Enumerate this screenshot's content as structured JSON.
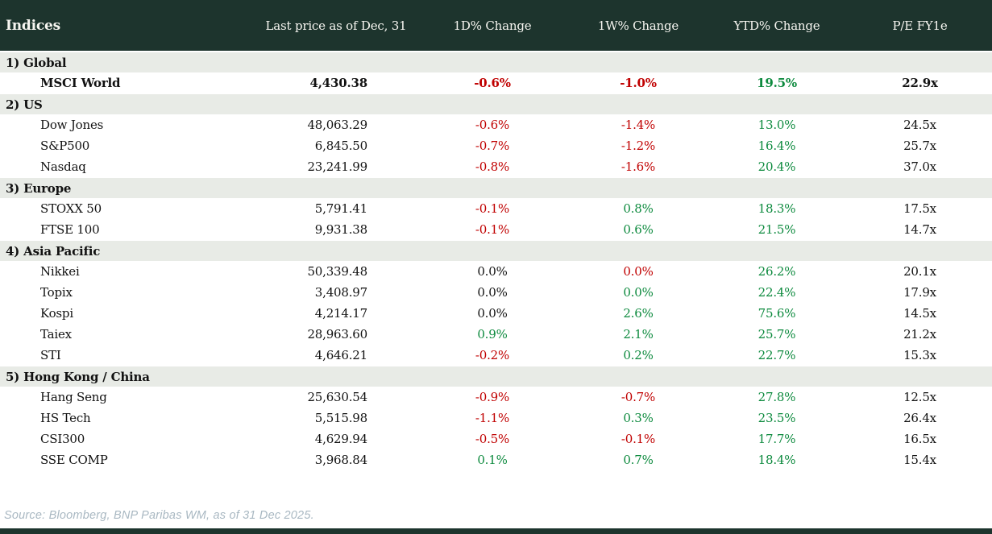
{
  "chart_data": {
    "type": "table",
    "title": "Indices",
    "columns": [
      "Indices",
      "Last price as of Dec, 31",
      "1D% Change",
      "1W% Change",
      "YTD% Change",
      "P/E FY1e"
    ],
    "sections": [
      {
        "label": "1) Global",
        "rows": [
          {
            "name": "MSCI World",
            "bold": true,
            "price": "4,430.38",
            "chg_1d": "-0.6%",
            "chg_1d_color": "neg",
            "chg_1w": "-1.0%",
            "chg_1w_color": "neg",
            "ytd": "19.5%",
            "ytd_color": "pos",
            "pe": "22.9x"
          }
        ]
      },
      {
        "label": "2) US",
        "rows": [
          {
            "name": "Dow Jones",
            "bold": false,
            "price": "48,063.29",
            "chg_1d": "-0.6%",
            "chg_1d_color": "neg",
            "chg_1w": "-1.4%",
            "chg_1w_color": "neg",
            "ytd": "13.0%",
            "ytd_color": "pos",
            "pe": "24.5x"
          },
          {
            "name": "S&P500",
            "bold": false,
            "price": "6,845.50",
            "chg_1d": "-0.7%",
            "chg_1d_color": "neg",
            "chg_1w": "-1.2%",
            "chg_1w_color": "neg",
            "ytd": "16.4%",
            "ytd_color": "pos",
            "pe": "25.7x"
          },
          {
            "name": "Nasdaq",
            "bold": false,
            "price": "23,241.99",
            "chg_1d": "-0.8%",
            "chg_1d_color": "neg",
            "chg_1w": "-1.6%",
            "chg_1w_color": "neg",
            "ytd": "20.4%",
            "ytd_color": "pos",
            "pe": "37.0x"
          }
        ]
      },
      {
        "label": "3) Europe",
        "rows": [
          {
            "name": "STOXX 50",
            "bold": false,
            "price": "5,791.41",
            "chg_1d": "-0.1%",
            "chg_1d_color": "neg",
            "chg_1w": "0.8%",
            "chg_1w_color": "pos",
            "ytd": "18.3%",
            "ytd_color": "pos",
            "pe": "17.5x"
          },
          {
            "name": "FTSE 100",
            "bold": false,
            "price": "9,931.38",
            "chg_1d": "-0.1%",
            "chg_1d_color": "neg",
            "chg_1w": "0.6%",
            "chg_1w_color": "pos",
            "ytd": "21.5%",
            "ytd_color": "pos",
            "pe": "14.7x"
          }
        ]
      },
      {
        "label": "4) Asia Pacific",
        "rows": [
          {
            "name": "Nikkei",
            "bold": false,
            "price": "50,339.48",
            "chg_1d": "0.0%",
            "chg_1d_color": "flat",
            "chg_1w": "0.0%",
            "chg_1w_color": "neg",
            "ytd": "26.2%",
            "ytd_color": "pos",
            "pe": "20.1x"
          },
          {
            "name": "Topix",
            "bold": false,
            "price": "3,408.97",
            "chg_1d": "0.0%",
            "chg_1d_color": "flat",
            "chg_1w": "0.0%",
            "chg_1w_color": "pos",
            "ytd": "22.4%",
            "ytd_color": "pos",
            "pe": "17.9x"
          },
          {
            "name": "Kospi",
            "bold": false,
            "price": "4,214.17",
            "chg_1d": "0.0%",
            "chg_1d_color": "flat",
            "chg_1w": "2.6%",
            "chg_1w_color": "pos",
            "ytd": "75.6%",
            "ytd_color": "pos",
            "pe": "14.5x"
          },
          {
            "name": "Taiex",
            "bold": false,
            "price": "28,963.60",
            "chg_1d": "0.9%",
            "chg_1d_color": "pos",
            "chg_1w": "2.1%",
            "chg_1w_color": "pos",
            "ytd": "25.7%",
            "ytd_color": "pos",
            "pe": "21.2x"
          },
          {
            "name": "STI",
            "bold": false,
            "price": "4,646.21",
            "chg_1d": "-0.2%",
            "chg_1d_color": "neg",
            "chg_1w": "0.2%",
            "chg_1w_color": "pos",
            "ytd": "22.7%",
            "ytd_color": "pos",
            "pe": "15.3x"
          }
        ]
      },
      {
        "label": "5) Hong Kong / China",
        "rows": [
          {
            "name": "Hang Seng",
            "bold": false,
            "price": "25,630.54",
            "chg_1d": "-0.9%",
            "chg_1d_color": "neg",
            "chg_1w": "-0.7%",
            "chg_1w_color": "neg",
            "ytd": "27.8%",
            "ytd_color": "pos",
            "pe": "12.5x"
          },
          {
            "name": "HS Tech",
            "bold": false,
            "price": "5,515.98",
            "chg_1d": "-1.1%",
            "chg_1d_color": "neg",
            "chg_1w": "0.3%",
            "chg_1w_color": "pos",
            "ytd": "23.5%",
            "ytd_color": "pos",
            "pe": "26.4x"
          },
          {
            "name": "CSI300",
            "bold": false,
            "price": "4,629.94",
            "chg_1d": "-0.5%",
            "chg_1d_color": "neg",
            "chg_1w": "-0.1%",
            "chg_1w_color": "neg",
            "ytd": "17.7%",
            "ytd_color": "pos",
            "pe": "16.5x"
          },
          {
            "name": "SSE COMP",
            "bold": false,
            "price": "3,968.84",
            "chg_1d": "0.1%",
            "chg_1d_color": "pos",
            "chg_1w": "0.7%",
            "chg_1w_color": "pos",
            "ytd": "18.4%",
            "ytd_color": "pos",
            "pe": "15.4x"
          }
        ]
      }
    ]
  },
  "footer": {
    "source_note": "Source: Bloomberg, BNP Paribas WM, as of 31 Dec 2025."
  },
  "colors": {
    "header_bg": "#1d342d",
    "section_band_bg": "#e8ebe6",
    "negative": "#c00000",
    "positive": "#0d8a3e",
    "neutral_text": "#121212",
    "source_text": "#a9b8c2",
    "bottom_bar": "#1d342d"
  }
}
